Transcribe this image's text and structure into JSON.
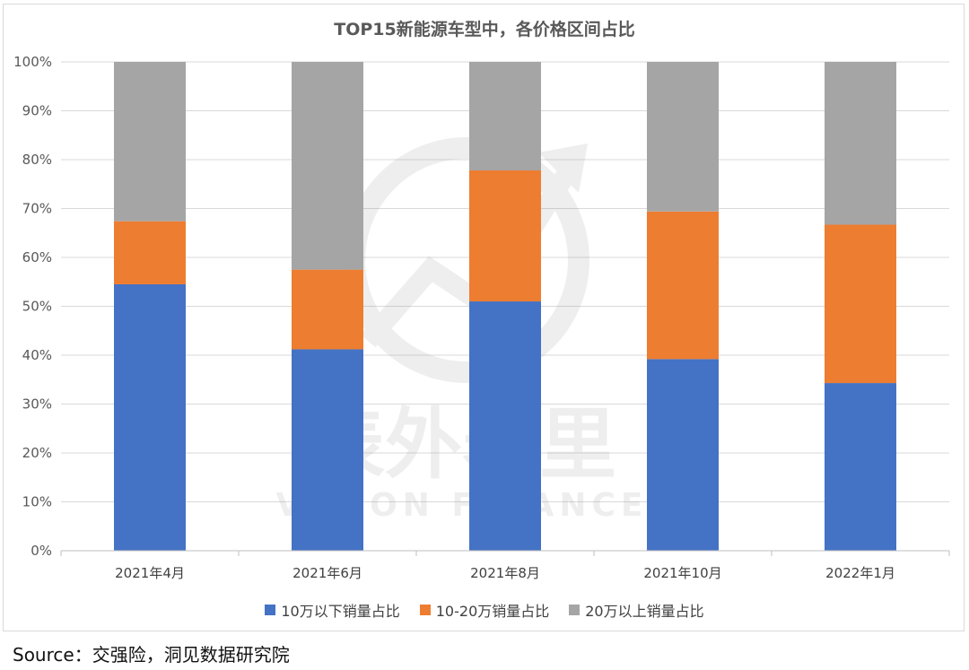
{
  "chart_data": {
    "type": "bar",
    "stacked": true,
    "title": "TOP15新能源车型中，各价格区间占比",
    "categories": [
      "2021年4月",
      "2021年6月",
      "2021年8月",
      "2021年10月",
      "2022年1月"
    ],
    "series": [
      {
        "name": "10万以下销量占比",
        "color": "#4472c4",
        "values": [
          54.5,
          41.2,
          51.0,
          39.2,
          34.3
        ]
      },
      {
        "name": "10-20万销量占比",
        "color": "#ed7d31",
        "values": [
          12.9,
          16.3,
          26.8,
          30.2,
          32.4
        ]
      },
      {
        "name": "20万以上销量占比",
        "color": "#a5a5a5",
        "values": [
          32.6,
          42.5,
          22.2,
          30.6,
          33.3
        ]
      }
    ],
    "yticks": [
      "0%",
      "10%",
      "20%",
      "30%",
      "40%",
      "50%",
      "60%",
      "70%",
      "80%",
      "90%",
      "100%"
    ],
    "ylim": [
      0,
      100
    ],
    "grid": true,
    "legend_position": "bottom"
  },
  "watermark": {
    "cn": "表外表里",
    "en": "VISION FINANCE"
  },
  "source": "Source：交强险，洞见数据研究院"
}
